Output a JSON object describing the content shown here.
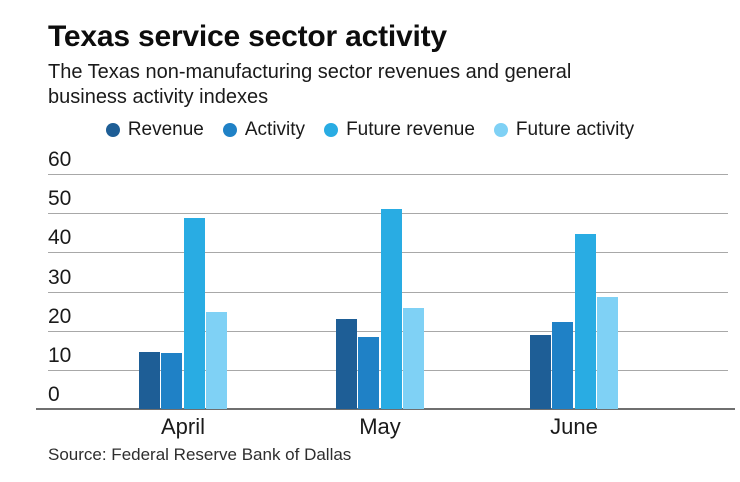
{
  "chart_data": {
    "type": "bar",
    "title": "Texas service sector activity",
    "subtitle_lines": [
      "The Texas non-manufacturing sector revenues and general",
      "business activity indexes"
    ],
    "source": "Source: Federal Reserve Bank of Dallas",
    "categories": [
      "April",
      "May",
      "June"
    ],
    "series": [
      {
        "name": "Revenue",
        "color": "#1e5e96",
        "values": [
          14.6,
          22.9,
          18.9
        ]
      },
      {
        "name": "Activity",
        "color": "#1f81c6",
        "values": [
          14.4,
          18.5,
          22.3
        ]
      },
      {
        "name": "Future revenue",
        "color": "#29ace3",
        "values": [
          48.7,
          51.1,
          44.6
        ]
      },
      {
        "name": "Future activity",
        "color": "#7fd1f5",
        "values": [
          24.7,
          25.9,
          28.5
        ]
      }
    ],
    "ylim": [
      0,
      60
    ],
    "yticks": [
      0,
      10,
      20,
      30,
      40,
      50,
      60
    ],
    "grid": true,
    "legend_position": "top",
    "colors": {
      "gridline": "#a8a8a8",
      "axis": "#6f6f6f",
      "text": "#1a1a1a"
    }
  }
}
